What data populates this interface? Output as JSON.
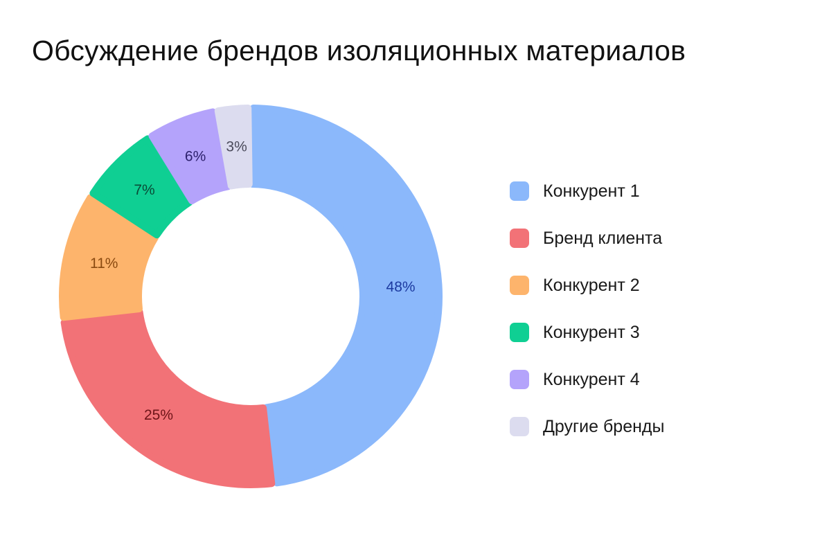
{
  "chart_data": {
    "type": "pie",
    "subtype": "donut",
    "title": "Обсуждение брендов изоляционных материалов",
    "unit": "%",
    "legend_position": "right",
    "slices": [
      {
        "label": "Конкурент 1",
        "value": 48,
        "value_label": "48%",
        "color": "#8BB8FB",
        "label_color": "#1C3AA0"
      },
      {
        "label": "Бренд клиента",
        "value": 25,
        "value_label": "25%",
        "color": "#F27277",
        "label_color": "#6E1418"
      },
      {
        "label": "Конкурент 2",
        "value": 11,
        "value_label": "11%",
        "color": "#FDB46C",
        "label_color": "#8A4A10"
      },
      {
        "label": "Конкурент 3",
        "value": 7,
        "value_label": "7%",
        "color": "#0FCF93",
        "label_color": "#0A4A36"
      },
      {
        "label": "Конкурент 4",
        "value": 6,
        "value_label": "6%",
        "color": "#B4A3FB",
        "label_color": "#2E226E"
      },
      {
        "label": "Другие бренды",
        "value": 3,
        "value_label": "3%",
        "color": "#DCDCEF",
        "label_color": "#4A4A5A"
      }
    ]
  }
}
